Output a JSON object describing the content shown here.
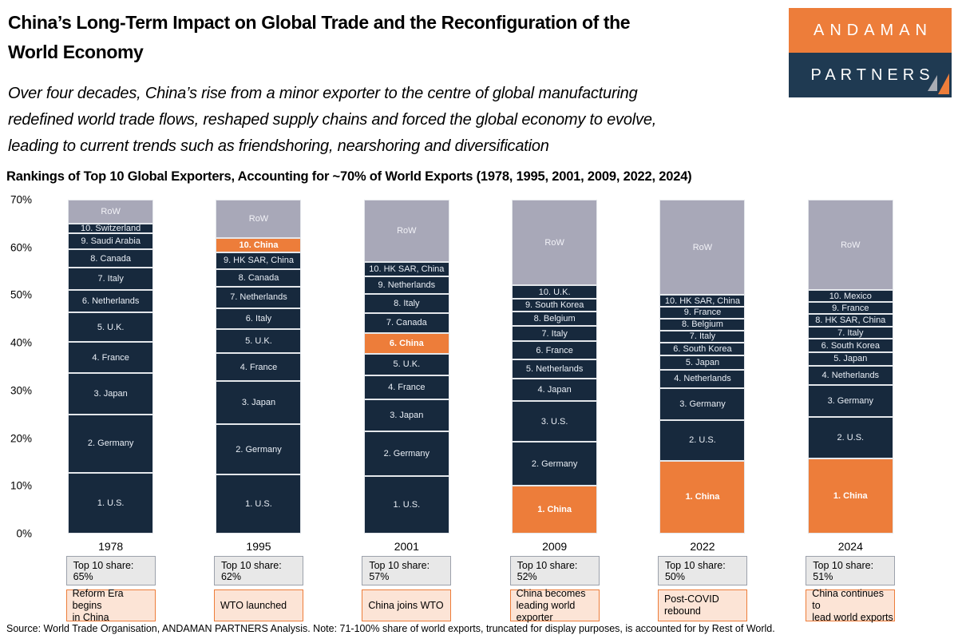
{
  "header": {
    "title": [
      "China’s Long-Term Impact on Global Trade and the Reconfiguration of the",
      "World Economy"
    ],
    "subtitle": [
      "Over four decades, China’s rise from a minor exporter to the centre of global manufacturing",
      "redefined world trade flows, reshaped supply chains and forced the global economy to evolve,",
      "leading to current trends such as friendshoring, nearshoring and diversification"
    ]
  },
  "logo": {
    "line1": "ANDAMAN",
    "line2": "PARTNERS",
    "orange": "#ED7D3A",
    "navy": "#1F3A52",
    "sail_icon": "two-sail-triangles (gray + orange)"
  },
  "chart_title": "Rankings of Top 10 Global Exporters, Accounting for ~70% of World Exports (1978, 1995, 2001, 2009, 2022, 2024)",
  "source": "Source: World Trade Organisation, ANDAMAN PARTNERS Analysis. Note: 71-100% share of world exports, truncated for display purposes, is accounted for by Rest of World.",
  "chart_data": {
    "type": "bar",
    "stacked": true,
    "unit": "share of world exports (%)",
    "ylim": [
      0,
      70
    ],
    "yticks": [
      0,
      10,
      20,
      30,
      40,
      50,
      60,
      70
    ],
    "grid": false,
    "legend": "none (labels inside segments)",
    "colors": {
      "navy": "#17293D",
      "orange": "#ED7D3A",
      "gray": "#A8A8B8"
    },
    "years": [
      {
        "year": "1978",
        "top10_label": "Top 10 share: 65%",
        "annotation": [
          "Reform Era begins",
          "in China"
        ],
        "stack_bottom_to_top": [
          {
            "label": "1. U.S.",
            "value": 12.7,
            "color": "navy"
          },
          {
            "label": "2. Germany",
            "value": 12.3,
            "color": "navy"
          },
          {
            "label": "3. Japan",
            "value": 8.6,
            "color": "navy"
          },
          {
            "label": "4. France",
            "value": 6.6,
            "color": "navy"
          },
          {
            "label": "5. U.K.",
            "value": 6.1,
            "color": "navy"
          },
          {
            "label": "6. Netherlands",
            "value": 4.8,
            "color": "navy"
          },
          {
            "label": "7. Italy",
            "value": 4.6,
            "color": "navy"
          },
          {
            "label": "8. Canada",
            "value": 3.9,
            "color": "navy"
          },
          {
            "label": "9. Saudi Arabia",
            "value": 3.3,
            "color": "navy"
          },
          {
            "label": "10. Switzerland",
            "value": 2.1,
            "color": "navy"
          },
          {
            "label": "RoW",
            "value": 5.0,
            "color": "gray"
          }
        ]
      },
      {
        "year": "1995",
        "top10_label": "Top 10 share: 62%",
        "annotation": [
          "WTO launched"
        ],
        "stack_bottom_to_top": [
          {
            "label": "1. U.S.",
            "value": 12.3,
            "color": "navy"
          },
          {
            "label": "2. Germany",
            "value": 10.7,
            "color": "navy"
          },
          {
            "label": "3. Japan",
            "value": 9.0,
            "color": "navy"
          },
          {
            "label": "4. France",
            "value": 5.8,
            "color": "navy"
          },
          {
            "label": "5. U.K.",
            "value": 5.0,
            "color": "navy"
          },
          {
            "label": "6. Italy",
            "value": 4.5,
            "color": "navy"
          },
          {
            "label": "7. Netherlands",
            "value": 4.4,
            "color": "navy"
          },
          {
            "label": "8. Canada",
            "value": 3.7,
            "color": "navy"
          },
          {
            "label": "9. HK SAR, China",
            "value": 3.6,
            "color": "navy"
          },
          {
            "label": "10. China",
            "value": 3.0,
            "color": "orange"
          },
          {
            "label": "RoW",
            "value": 8.0,
            "color": "gray"
          }
        ]
      },
      {
        "year": "2001",
        "top10_label": "Top 10 share: 57%",
        "annotation": [
          "China joins WTO"
        ],
        "stack_bottom_to_top": [
          {
            "label": "1. U.S.",
            "value": 12.0,
            "color": "navy"
          },
          {
            "label": "2. Germany",
            "value": 9.5,
            "color": "navy"
          },
          {
            "label": "3. Japan",
            "value": 6.7,
            "color": "navy"
          },
          {
            "label": "4. France",
            "value": 5.0,
            "color": "navy"
          },
          {
            "label": "5. U.K.",
            "value": 4.5,
            "color": "navy"
          },
          {
            "label": "6. China",
            "value": 4.4,
            "color": "orange"
          },
          {
            "label": "7. Canada",
            "value": 4.2,
            "color": "navy"
          },
          {
            "label": "8. Italy",
            "value": 4.0,
            "color": "navy"
          },
          {
            "label": "9. Netherlands",
            "value": 3.7,
            "color": "navy"
          },
          {
            "label": "10. HK SAR, China",
            "value": 3.0,
            "color": "navy"
          },
          {
            "label": "RoW",
            "value": 13.0,
            "color": "gray"
          }
        ]
      },
      {
        "year": "2009",
        "top10_label": "Top 10 share: 52%",
        "annotation": [
          "China becomes",
          "leading world exporter"
        ],
        "stack_bottom_to_top": [
          {
            "label": "1. China",
            "value": 10.0,
            "color": "orange"
          },
          {
            "label": "2. Germany",
            "value": 9.2,
            "color": "navy"
          },
          {
            "label": "3. U.S.",
            "value": 8.6,
            "color": "navy"
          },
          {
            "label": "4. Japan",
            "value": 4.7,
            "color": "navy"
          },
          {
            "label": "5. Netherlands",
            "value": 4.0,
            "color": "navy"
          },
          {
            "label": "6. France",
            "value": 3.8,
            "color": "navy"
          },
          {
            "label": "7. Italy",
            "value": 3.2,
            "color": "navy"
          },
          {
            "label": "8. Belgium",
            "value": 3.0,
            "color": "navy"
          },
          {
            "label": "9. South Korea",
            "value": 2.8,
            "color": "navy"
          },
          {
            "label": "10. U.K.",
            "value": 2.7,
            "color": "navy"
          },
          {
            "label": "RoW",
            "value": 18.0,
            "color": "gray"
          }
        ]
      },
      {
        "year": "2022",
        "top10_label": "Top 10 share: 50%",
        "annotation": [
          "Post-COVID rebound"
        ],
        "stack_bottom_to_top": [
          {
            "label": "1. China",
            "value": 15.3,
            "color": "orange"
          },
          {
            "label": "2. U.S.",
            "value": 8.4,
            "color": "navy"
          },
          {
            "label": "3. Germany",
            "value": 6.8,
            "color": "navy"
          },
          {
            "label": "4. Netherlands",
            "value": 3.8,
            "color": "navy"
          },
          {
            "label": "5. Japan",
            "value": 3.0,
            "color": "navy"
          },
          {
            "label": "6. South Korea",
            "value": 2.7,
            "color": "navy"
          },
          {
            "label": "7. Italy",
            "value": 2.6,
            "color": "navy"
          },
          {
            "label": "8. Belgium",
            "value": 2.5,
            "color": "navy"
          },
          {
            "label": "9. France",
            "value": 2.5,
            "color": "navy"
          },
          {
            "label": "10. HK SAR, China",
            "value": 2.4,
            "color": "navy"
          },
          {
            "label": "RoW",
            "value": 20.0,
            "color": "gray"
          }
        ]
      },
      {
        "year": "2024",
        "top10_label": "Top 10 share: 51%",
        "annotation": [
          "China continues to",
          "lead world exports"
        ],
        "stack_bottom_to_top": [
          {
            "label": "1. China",
            "value": 15.8,
            "color": "orange"
          },
          {
            "label": "2. U.S.",
            "value": 8.7,
            "color": "navy"
          },
          {
            "label": "3. Germany",
            "value": 6.7,
            "color": "navy"
          },
          {
            "label": "4. Netherlands",
            "value": 4.0,
            "color": "navy"
          },
          {
            "label": "5. Japan",
            "value": 2.8,
            "color": "navy"
          },
          {
            "label": "6. South Korea",
            "value": 2.8,
            "color": "navy"
          },
          {
            "label": "7. Italy",
            "value": 2.6,
            "color": "navy"
          },
          {
            "label": "8. HK SAR, China",
            "value": 2.6,
            "color": "navy"
          },
          {
            "label": "9. France",
            "value": 2.5,
            "color": "navy"
          },
          {
            "label": "10. Mexico",
            "value": 2.5,
            "color": "navy"
          },
          {
            "label": "RoW",
            "value": 19.0,
            "color": "gray"
          }
        ]
      }
    ]
  }
}
